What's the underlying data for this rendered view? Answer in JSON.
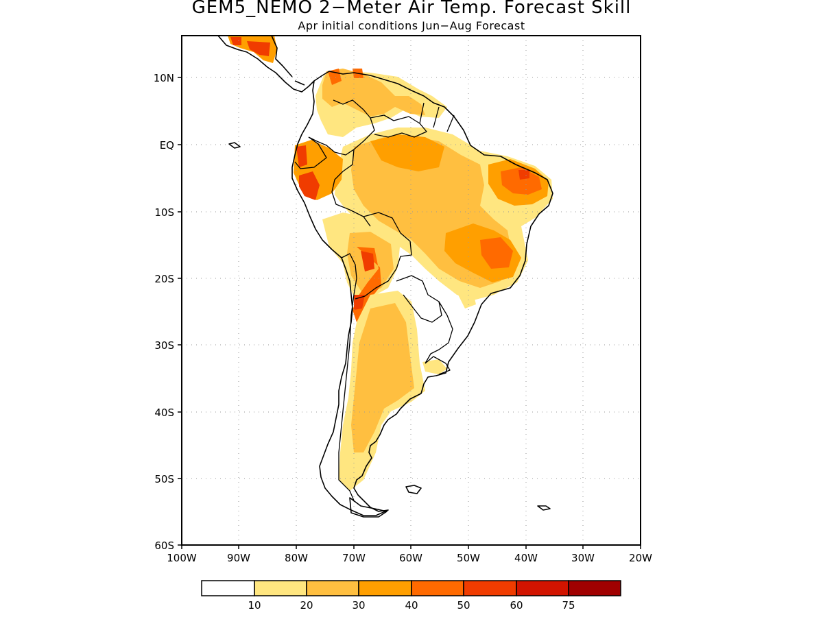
{
  "title": "GEM5_NEMO 2−Meter Air Temp. Forecast Skill",
  "subtitle": "Apr initial conditions   Jun−Aug Forecast",
  "map": {
    "lat_labels": [
      "10N",
      "EQ",
      "10S",
      "20S",
      "30S",
      "40S",
      "50S",
      "60S"
    ],
    "lon_labels": [
      "100W",
      "90W",
      "80W",
      "70W",
      "60W",
      "50W",
      "40W",
      "30W",
      "20W"
    ],
    "grid": "dotted"
  },
  "colorbar": {
    "labels": [
      "10",
      "20",
      "30",
      "40",
      "50",
      "60",
      "75"
    ],
    "colors": [
      "#ffffff",
      "#ffe680",
      "#ffbf40",
      "#ff9f00",
      "#ff6a00",
      "#f03c00",
      "#d21400",
      "#a00000"
    ]
  }
}
